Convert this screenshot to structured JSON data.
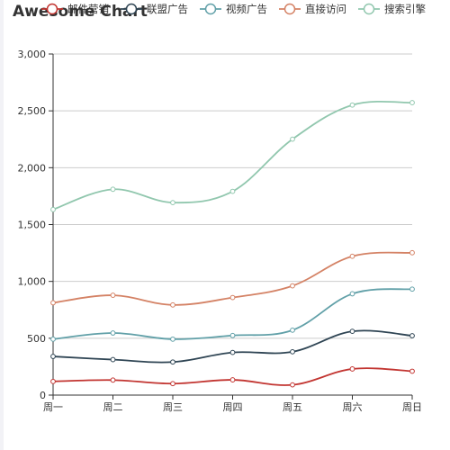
{
  "chart_data": {
    "type": "line",
    "smooth": true,
    "title": "Awesome Chart",
    "categories": [
      "周一",
      "周二",
      "周三",
      "周四",
      "周五",
      "周六",
      "周日"
    ],
    "ylim": [
      0,
      3000
    ],
    "yticks": [
      0,
      500,
      1000,
      1500,
      2000,
      2500,
      3000
    ],
    "ytick_labels": [
      "0",
      "500",
      "1,000",
      "1,500",
      "2,000",
      "2,500",
      "3,000"
    ],
    "grid": "horizontal",
    "legend_position": "top",
    "series": [
      {
        "name": "邮件营销",
        "color": "#c23531",
        "values": [
          120,
          132,
          101,
          134,
          90,
          230,
          210
        ]
      },
      {
        "name": "联盟广告",
        "color": "#2f4554",
        "values": [
          340,
          312,
          291,
          375,
          381,
          561,
          522
        ]
      },
      {
        "name": "视频广告",
        "color": "#61a0a8",
        "values": [
          492,
          546,
          492,
          524,
          571,
          891,
          932
        ]
      },
      {
        "name": "直接访问",
        "color": "#d48265",
        "values": [
          812,
          878,
          793,
          858,
          961,
          1221,
          1252
        ]
      },
      {
        "name": "搜索引擎",
        "color": "#91c7ae",
        "values": [
          1632,
          1810,
          1693,
          1792,
          2251,
          2551,
          2572
        ]
      }
    ]
  }
}
